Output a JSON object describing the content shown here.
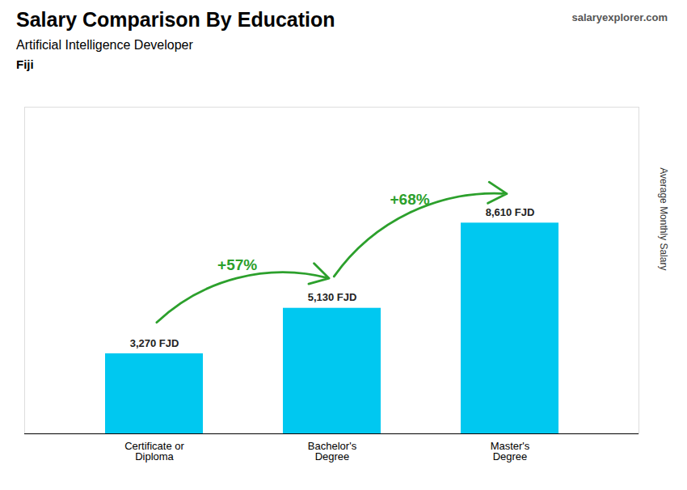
{
  "chart_data": {
    "type": "bar",
    "title": "Salary Comparison By Education",
    "subtitle": "Artificial Intelligence Developer",
    "country": "Fiji",
    "caption": "salaryexplorer.com",
    "ylabel": "Average Monthly Salary",
    "categories": [
      "Certificate or\nDiploma",
      "Bachelor's\nDegree",
      "Master's\nDegree"
    ],
    "values": [
      3270,
      5130,
      8610
    ],
    "value_labels": [
      "3,270 FJD",
      "5,130 FJD",
      "8,610 FJD"
    ],
    "data_labels": true,
    "annotations": [
      "+57%",
      "+68%"
    ],
    "color": "#00c8f0",
    "ylim": [
      0,
      13345.5
    ],
    "tick_labels": "x"
  }
}
